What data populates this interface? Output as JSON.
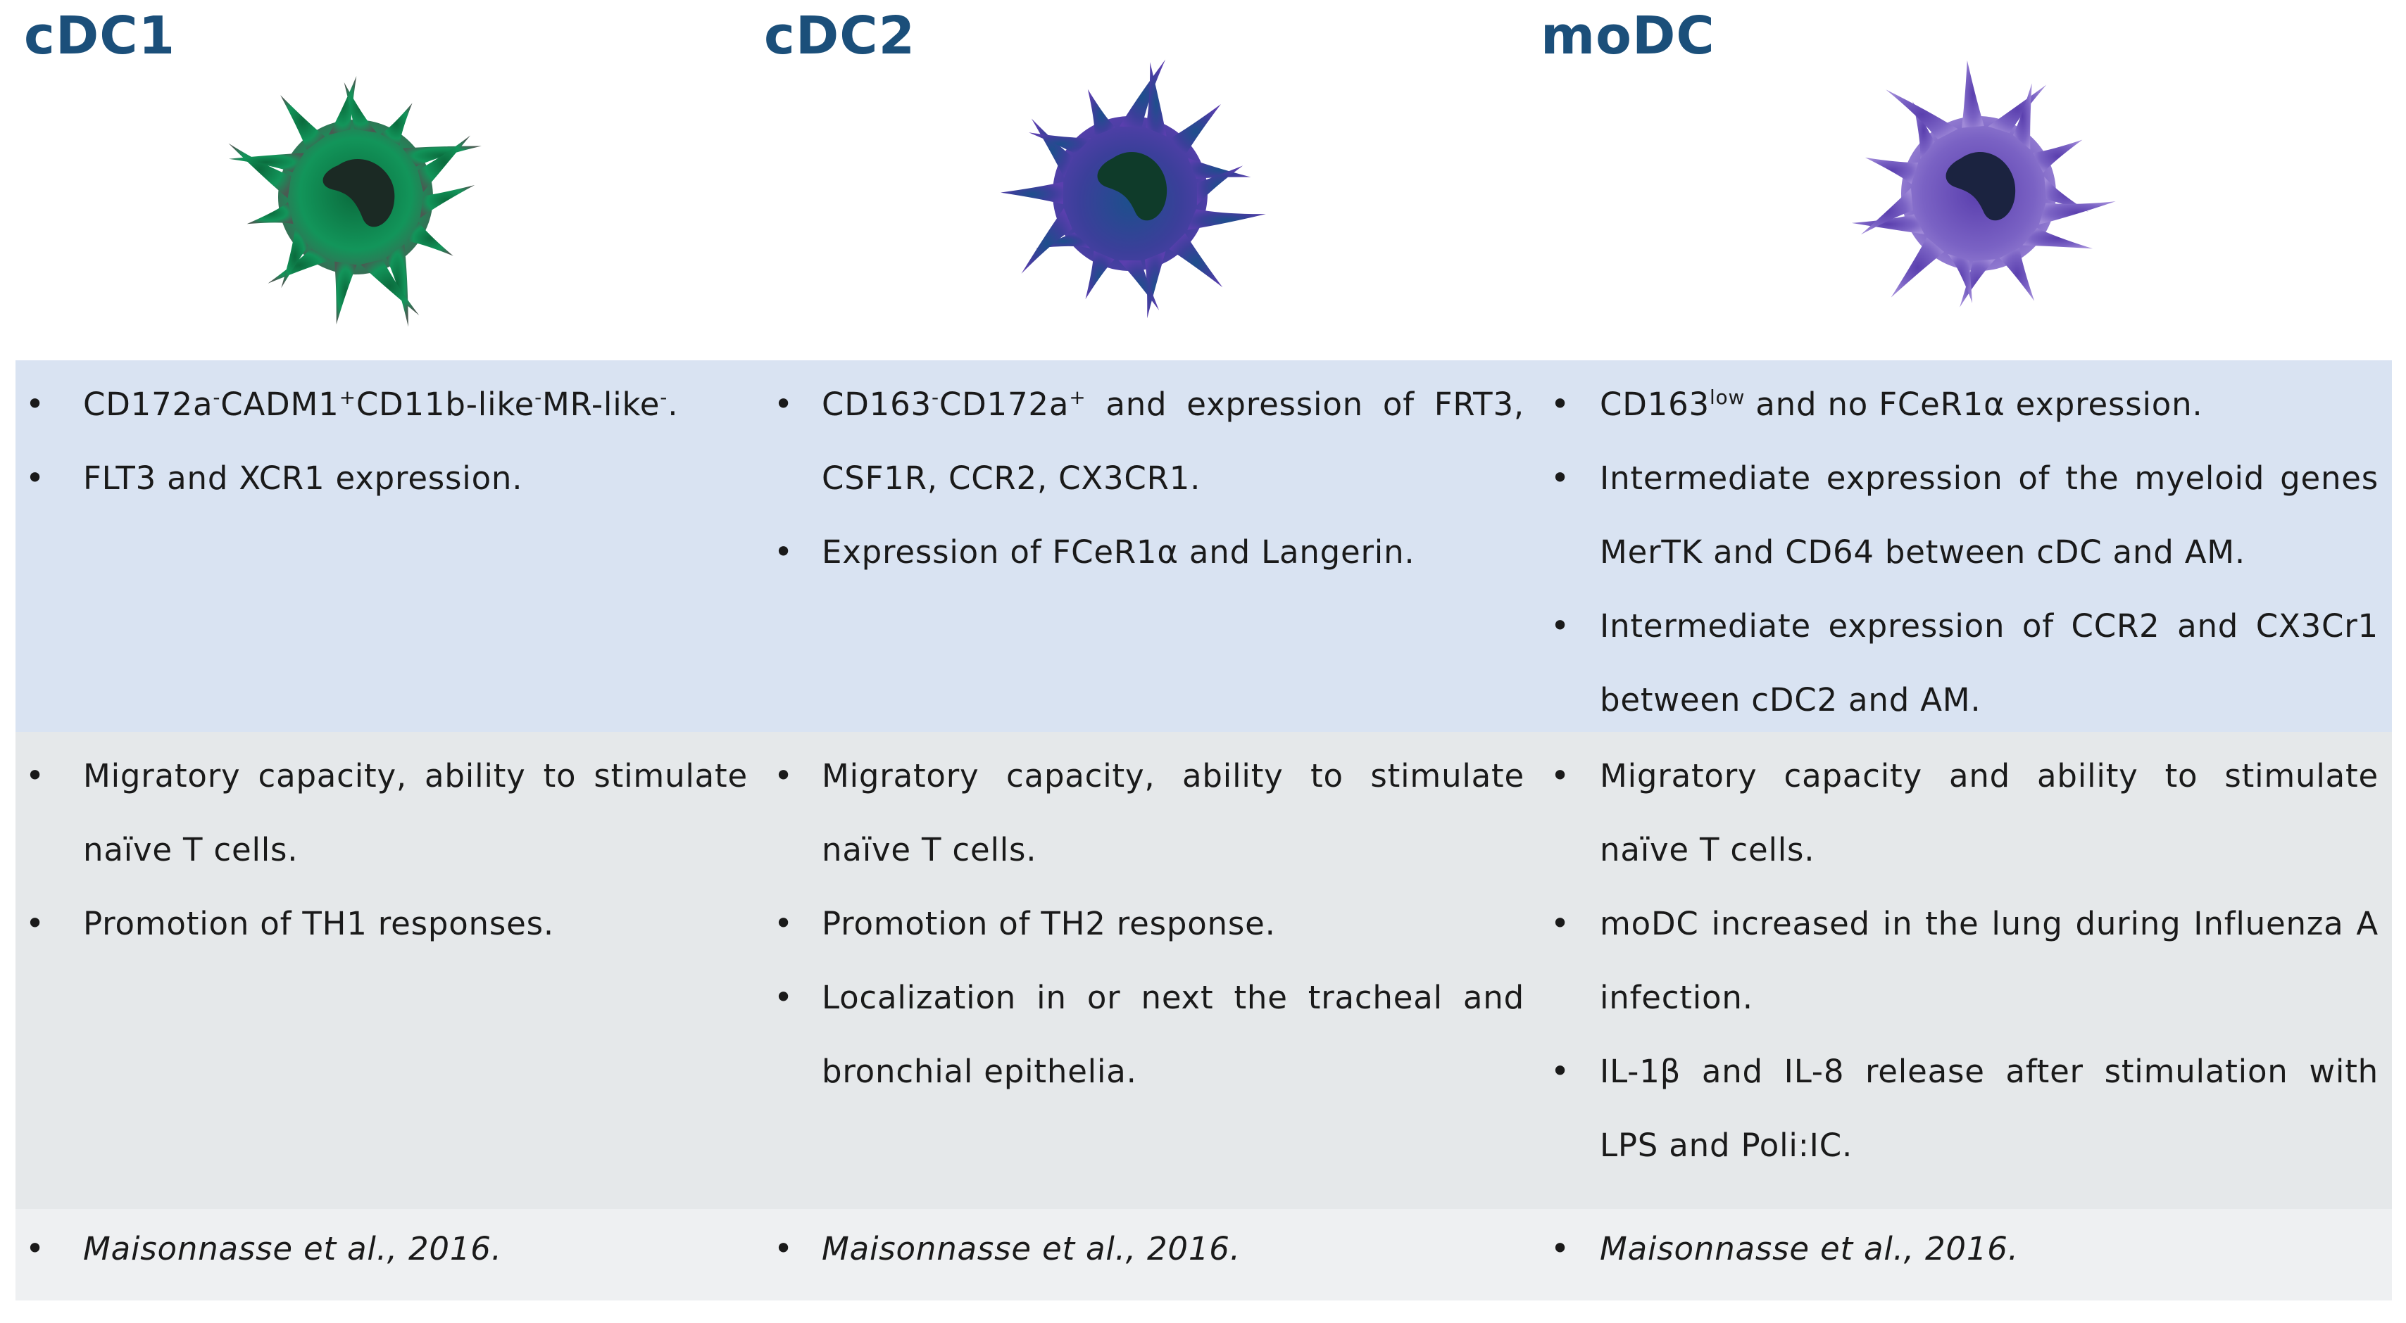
{
  "columns": [
    {
      "title": "cDC1",
      "color": "#128a55",
      "phenotype": [
        {
          "parts": [
            {
              "t": "CD172a"
            },
            {
              "t": "-",
              "sup": true
            },
            {
              "t": "CADM1"
            },
            {
              "t": "+",
              "sup": true
            },
            {
              "t": "CD11b-like"
            },
            {
              "t": "-",
              "sup": true
            },
            {
              "t": "MR-like"
            },
            {
              "t": "-",
              "sup": true
            },
            {
              "t": "."
            }
          ]
        },
        {
          "text": "FLT3 and XCR1 expression."
        }
      ],
      "functions": [
        {
          "text": "Migratory capacity, ability to stimulate naïve T cells."
        },
        {
          "text": "Promotion of TH1 responses."
        }
      ],
      "citation": "Maisonnasse et al., 2016."
    },
    {
      "title": "cDC2",
      "color": "#4a3f9c",
      "phenotype": [
        {
          "parts": [
            {
              "t": "CD163"
            },
            {
              "t": "-",
              "sup": true
            },
            {
              "t": "CD172a"
            },
            {
              "t": "+",
              "sup": true
            },
            {
              "t": " and expression of FRT3, CSF1R, CCR2, CX3CR1."
            }
          ]
        },
        {
          "text": "Expression of FCeR1α and Langerin."
        }
      ],
      "functions": [
        {
          "text": "Migratory capacity, ability to stimulate naïve T cells."
        },
        {
          "text": "Promotion of TH2 response."
        },
        {
          "text": "Localization in or next the tracheal and bronchial epithelia."
        }
      ],
      "citation": "Maisonnasse et al., 2016."
    },
    {
      "title": "moDC",
      "color": "#7a62c4",
      "phenotype": [
        {
          "parts": [
            {
              "t": "CD163"
            },
            {
              "t": "low",
              "sup": true
            },
            {
              "t": " and no FCeR1α expression."
            }
          ]
        },
        {
          "text": "Intermediate expression of the myeloid genes MerTK and CD64 between cDC and AM."
        },
        {
          "text": "Intermediate expression of CCR2 and CX3Cr1 between cDC2 and AM."
        }
      ],
      "functions": [
        {
          "text": "Migratory capacity and ability to stimulate naïve T cells."
        },
        {
          "text": "moDC increased in the lung during Influenza A infection."
        },
        {
          "text": "IL-1β and IL-8 release after stimulation with LPS and Poli:IC."
        }
      ],
      "citation": "Maisonnasse et al., 2016."
    }
  ],
  "colors": {
    "title": "#1b4f7a",
    "band_phenotype": "#d9e3f2",
    "band_function": "#e5e8ea",
    "band_citation": "#eef0f2"
  }
}
